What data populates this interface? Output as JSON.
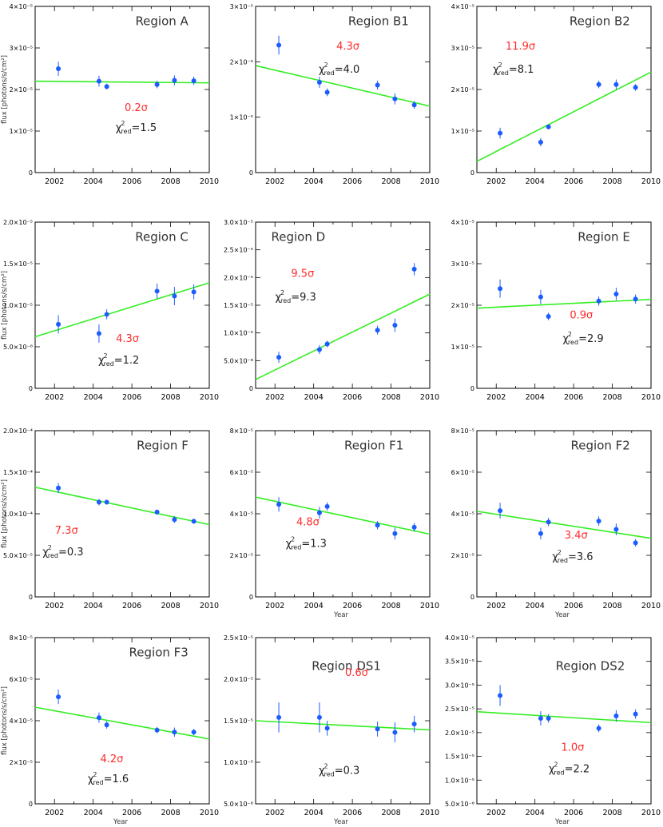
{
  "colors": {
    "points": "#1a5cff",
    "fit": "#33ee22",
    "significance": "#ff2a2a"
  },
  "chart_data": [
    {
      "type": "scatter",
      "title": "Region A",
      "significance": "0.2σ",
      "chi2": "=1.5",
      "xlim": [
        2001,
        2010
      ],
      "ylim": [
        0,
        4e-05
      ],
      "yticks": [
        0,
        1e-05,
        2e-05,
        3e-05,
        4e-05
      ],
      "ytick_labels": [
        "0",
        "1×10⁻⁵",
        "2×10⁻⁵",
        "3×10⁻⁵",
        "4×10⁻⁵"
      ],
      "xtick_labels": [
        "2002",
        "2004",
        "2006",
        "2008",
        "2010"
      ],
      "ylabel": "flux [photons/s/cm²]",
      "xlabel": "",
      "x": [
        2002.2,
        2004.3,
        2004.7,
        2007.3,
        2008.2,
        2009.2
      ],
      "y": [
        2.5e-05,
        2.2e-05,
        2.07e-05,
        2.12e-05,
        2.22e-05,
        2.21e-05
      ],
      "yerr": [
        1.7e-06,
        1.3e-06,
        7e-07,
        9e-07,
        1.2e-06,
        1e-06
      ],
      "fit": [
        [
          2001,
          2.2e-05
        ],
        [
          2010,
          2.16e-05
        ]
      ]
    },
    {
      "type": "scatter",
      "title": "Region B1",
      "significance": "4.3σ",
      "chi2": "=4.0",
      "xlim": [
        2001,
        2010
      ],
      "ylim": [
        0,
        3e-05
      ],
      "yticks": [
        0,
        1e-05,
        2e-05,
        3e-05
      ],
      "ytick_labels": [
        "0",
        "1×10⁻⁵",
        "2×10⁻⁵",
        "3×10⁻⁵"
      ],
      "xtick_labels": [
        "2002",
        "2004",
        "2006",
        "2008",
        "2010"
      ],
      "ylabel": "",
      "xlabel": "",
      "x": [
        2002.2,
        2004.3,
        2004.7,
        2007.3,
        2008.2,
        2009.2
      ],
      "y": [
        2.3e-05,
        1.63e-05,
        1.45e-05,
        1.58e-05,
        1.33e-05,
        1.22e-05
      ],
      "yerr": [
        1.7e-06,
        1e-06,
        7e-07,
        8e-07,
        1e-06,
        7e-07
      ],
      "fit": [
        [
          2001,
          1.93e-05
        ],
        [
          2010,
          1.2e-05
        ]
      ]
    },
    {
      "type": "scatter",
      "title": "Region B2",
      "significance": "11.9σ",
      "chi2": "=8.1",
      "xlim": [
        2001,
        2010
      ],
      "ylim": [
        0,
        4e-05
      ],
      "yticks": [
        0,
        1e-05,
        2e-05,
        3e-05,
        4e-05
      ],
      "ytick_labels": [
        "0",
        "1×10⁻⁵",
        "2×10⁻⁵",
        "3×10⁻⁵",
        "4×10⁻⁵"
      ],
      "xtick_labels": [
        "2002",
        "2004",
        "2006",
        "2008",
        "2010"
      ],
      "ylabel": "",
      "xlabel": "",
      "x": [
        2002.2,
        2004.3,
        2004.7,
        2007.3,
        2008.2,
        2009.2
      ],
      "y": [
        9.5e-06,
        7.3e-06,
        1.1e-05,
        2.12e-05,
        2.12e-05,
        2.05e-05
      ],
      "yerr": [
        1.3e-06,
        1e-06,
        6e-07,
        9e-07,
        1.2e-06,
        8e-07
      ],
      "fit": [
        [
          2001,
          2.7e-06
        ],
        [
          2010,
          2.42e-05
        ]
      ]
    },
    {
      "type": "scatter",
      "title": "Region C",
      "significance": "4.3σ",
      "chi2": "=1.2",
      "xlim": [
        2001,
        2010
      ],
      "ylim": [
        0,
        2e-05
      ],
      "yticks": [
        0,
        5e-06,
        1e-05,
        1.5e-05,
        2e-05
      ],
      "ytick_labels": [
        "0",
        "5.0×10⁻⁶",
        "1.0×10⁻⁵",
        "1.5×10⁻⁵",
        "2.0×10⁻⁵"
      ],
      "xtick_labels": [
        "2002",
        "2004",
        "2006",
        "2008",
        "2010"
      ],
      "ylabel": "flux [photons/s/cm²]",
      "xlabel": "",
      "x": [
        2002.2,
        2004.3,
        2004.7,
        2007.3,
        2008.2,
        2009.2
      ],
      "y": [
        7.7e-06,
        6.6e-06,
        8.9e-06,
        1.17e-05,
        1.11e-05,
        1.16e-05
      ],
      "yerr": [
        1.1e-06,
        1.1e-06,
        6e-07,
        9e-07,
        1.1e-06,
        9e-07
      ],
      "fit": [
        [
          2001,
          6.2e-06
        ],
        [
          2010,
          1.27e-05
        ]
      ]
    },
    {
      "type": "scatter",
      "title": "Region D",
      "significance": "9.5σ",
      "chi2": "=9.3",
      "xlim": [
        2001,
        2010
      ],
      "ylim": [
        0,
        3e-05
      ],
      "yticks": [
        0,
        5e-06,
        1e-05,
        1.5e-05,
        2e-05,
        2.5e-05,
        3e-05
      ],
      "ytick_labels": [
        "0",
        "5.0×10⁻⁶",
        "1.0×10⁻⁵",
        "1.5×10⁻⁵",
        "2.0×10⁻⁵",
        "2.5×10⁻⁵",
        "3.0×10⁻⁵"
      ],
      "xtick_labels": [
        "2002",
        "2004",
        "2006",
        "2008",
        "2010"
      ],
      "ylabel": "",
      "xlabel": "",
      "x": [
        2002.2,
        2004.3,
        2004.7,
        2007.3,
        2008.2,
        2009.2
      ],
      "y": [
        5.6e-06,
        7e-06,
        8e-06,
        1.05e-05,
        1.14e-05,
        2.15e-05
      ],
      "yerr": [
        1e-06,
        8e-07,
        6e-07,
        8e-07,
        1.2e-06,
        1.1e-06
      ],
      "fit": [
        [
          2001,
          1.6e-06
        ],
        [
          2010,
          1.7e-05
        ]
      ]
    },
    {
      "type": "scatter",
      "title": "Region E",
      "significance": "0.9σ",
      "chi2": "=2.9",
      "xlim": [
        2001,
        2010
      ],
      "ylim": [
        0,
        4e-05
      ],
      "yticks": [
        0,
        1e-05,
        2e-05,
        3e-05,
        4e-05
      ],
      "ytick_labels": [
        "0",
        "1×10⁻⁵",
        "2×10⁻⁵",
        "3×10⁻⁵",
        "4×10⁻⁵"
      ],
      "xtick_labels": [
        "2002",
        "2004",
        "2006",
        "2008",
        "2010"
      ],
      "ylabel": "",
      "xlabel": "",
      "x": [
        2002.2,
        2004.3,
        2004.7,
        2007.3,
        2008.2,
        2009.2
      ],
      "y": [
        2.4e-05,
        2.2e-05,
        1.73e-05,
        2.1e-05,
        2.27e-05,
        2.15e-05
      ],
      "yerr": [
        2.2e-06,
        1.7e-06,
        9e-07,
        1.1e-06,
        1.5e-06,
        1.1e-06
      ],
      "fit": [
        [
          2001,
          1.93e-05
        ],
        [
          2010,
          2.14e-05
        ]
      ]
    },
    {
      "type": "scatter",
      "title": "Region F",
      "significance": "7.3σ",
      "chi2": "=0.3",
      "xlim": [
        2001,
        2010
      ],
      "ylim": [
        0,
        0.0002
      ],
      "yticks": [
        0,
        5e-05,
        0.0001,
        0.00015,
        0.0002
      ],
      "ytick_labels": [
        "0",
        "5.0×10⁻⁵",
        "1.0×10⁻⁴",
        "1.5×10⁻⁴",
        "2.0×10⁻⁴"
      ],
      "xtick_labels": [
        "2002",
        "2004",
        "2006",
        "2008",
        "2010"
      ],
      "ylabel": "flux [photons/s/cm²]",
      "xlabel": "",
      "x": [
        2002.2,
        2004.3,
        2004.7,
        2007.3,
        2008.2,
        2009.2
      ],
      "y": [
        0.000131,
        0.000114,
        0.000114,
        0.000102,
        9.3e-05,
        9.1e-05
      ],
      "yerr": [
        6e-06,
        4e-06,
        3e-06,
        3e-06,
        4e-06,
        3e-06
      ],
      "fit": [
        [
          2001,
          0.000132
        ],
        [
          2010,
          8.7e-05
        ]
      ]
    },
    {
      "type": "scatter",
      "title": "Region F1",
      "significance": "4.8σ",
      "chi2": "=1.3",
      "xlim": [
        2001,
        2010
      ],
      "ylim": [
        0,
        8e-05
      ],
      "yticks": [
        0,
        2e-05,
        4e-05,
        6e-05,
        8e-05
      ],
      "ytick_labels": [
        "0",
        "2×10⁻⁵",
        "4×10⁻⁵",
        "6×10⁻⁵",
        "8×10⁻⁵"
      ],
      "xtick_labels": [
        "2002",
        "2004",
        "2006",
        "2008",
        "2010"
      ],
      "ylabel": "",
      "xlabel": "Year",
      "x": [
        2002.2,
        2004.3,
        2004.7,
        2007.3,
        2008.2,
        2009.2
      ],
      "y": [
        4.45e-05,
        4.05e-05,
        4.35e-05,
        3.45e-05,
        3.05e-05,
        3.35e-05
      ],
      "yerr": [
        3.5e-06,
        2.8e-06,
        2e-06,
        2e-06,
        2.8e-06,
        2e-06
      ],
      "fit": [
        [
          2001,
          4.8e-05
        ],
        [
          2010,
          3.02e-05
        ]
      ]
    },
    {
      "type": "scatter",
      "title": "Region F2",
      "significance": "3.4σ",
      "chi2": "=3.6",
      "xlim": [
        2001,
        2010
      ],
      "ylim": [
        0,
        8e-05
      ],
      "yticks": [
        0,
        2e-05,
        4e-05,
        6e-05,
        8e-05
      ],
      "ytick_labels": [
        "0",
        "2×10⁻⁵",
        "4×10⁻⁵",
        "6×10⁻⁵",
        "8×10⁻⁵"
      ],
      "xtick_labels": [
        "2002",
        "2004",
        "2006",
        "2008",
        "2010"
      ],
      "ylabel": "",
      "xlabel": "Year",
      "x": [
        2002.2,
        2004.3,
        2004.7,
        2007.3,
        2008.2,
        2009.2
      ],
      "y": [
        4.15e-05,
        3.05e-05,
        3.6e-05,
        3.65e-05,
        3.25e-05,
        2.6e-05
      ],
      "yerr": [
        3.8e-06,
        2.8e-06,
        2e-06,
        2.2e-06,
        2.8e-06,
        1.8e-06
      ],
      "fit": [
        [
          2001,
          4.12e-05
        ],
        [
          2010,
          2.82e-05
        ]
      ]
    },
    {
      "type": "scatter",
      "title": "Region F3",
      "significance": "4.2σ",
      "chi2": "=1.6",
      "xlim": [
        2001,
        2010
      ],
      "ylim": [
        0,
        8e-05
      ],
      "yticks": [
        0,
        2e-05,
        4e-05,
        6e-05,
        8e-05
      ],
      "ytick_labels": [
        "0",
        "2×10⁻⁵",
        "4×10⁻⁵",
        "6×10⁻⁵",
        "8×10⁻⁵"
      ],
      "xtick_labels": [
        "2002",
        "2004",
        "2006",
        "2008",
        "2010"
      ],
      "ylabel": "flux [photons/s/cm²]",
      "xlabel": "Year",
      "x": [
        2002.2,
        2004.3,
        2004.7,
        2007.3,
        2008.2,
        2009.2
      ],
      "y": [
        5.15e-05,
        4.15e-05,
        3.8e-05,
        3.55e-05,
        3.45e-05,
        3.45e-05
      ],
      "yerr": [
        3.5e-06,
        2.5e-06,
        1.8e-06,
        1.5e-06,
        2.2e-06,
        1.5e-06
      ],
      "fit": [
        [
          2001,
          4.65e-05
        ],
        [
          2010,
          3.12e-05
        ]
      ]
    },
    {
      "type": "scatter",
      "title": "Region DS1",
      "significance": "0.6σ",
      "chi2": "=0.3",
      "xlim": [
        2001,
        2010
      ],
      "ylim": [
        5e-06,
        2.5e-05
      ],
      "yticks": [
        5e-06,
        1e-05,
        1.5e-05,
        2e-05,
        2.5e-05
      ],
      "ytick_labels": [
        "5.0×10⁻⁶",
        "1.0×10⁻⁵",
        "1.5×10⁻⁵",
        "2.0×10⁻⁵",
        "2.5×10⁻⁵"
      ],
      "xtick_labels": [
        "2002",
        "2004",
        "2006",
        "2008",
        "2010"
      ],
      "ylabel": "",
      "xlabel": "Year",
      "x": [
        2002.2,
        2004.3,
        2004.7,
        2007.3,
        2008.2,
        2009.2
      ],
      "y": [
        1.54e-05,
        1.54e-05,
        1.41e-05,
        1.4e-05,
        1.36e-05,
        1.46e-05
      ],
      "yerr": [
        1.8e-06,
        1.8e-06,
        9e-07,
        9e-07,
        1.2e-06,
        1e-06
      ],
      "fit": [
        [
          2001,
          1.5e-05
        ],
        [
          2010,
          1.39e-05
        ]
      ]
    },
    {
      "type": "scatter",
      "title": "Region DS2",
      "significance": "1.0σ",
      "chi2": "=2.2",
      "xlim": [
        2001,
        2010
      ],
      "ylim": [
        5e-06,
        4e-05
      ],
      "yticks": [
        5e-06,
        1e-05,
        1.5e-05,
        2e-05,
        2.5e-05,
        3e-05,
        3.5e-05,
        4e-05
      ],
      "ytick_labels": [
        "5.0×10⁻⁶",
        "1.0×10⁻⁵",
        "1.5×10⁻⁵",
        "2.0×10⁻⁵",
        "2.5×10⁻⁵",
        "3.0×10⁻⁵",
        "3.5×10⁻⁵",
        "4.0×10⁻⁵"
      ],
      "xtick_labels": [
        "2002",
        "2004",
        "2006",
        "2008",
        "2010"
      ],
      "ylabel": "",
      "xlabel": "Year",
      "x": [
        2002.2,
        2004.3,
        2004.7,
        2007.3,
        2008.2,
        2009.2
      ],
      "y": [
        2.78e-05,
        2.3e-05,
        2.3e-05,
        2.09e-05,
        2.35e-05,
        2.39e-05
      ],
      "yerr": [
        2.2e-06,
        1.5e-06,
        9e-07,
        8e-07,
        1.2e-06,
        1e-06
      ],
      "fit": [
        [
          2001,
          2.44e-05
        ],
        [
          2010,
          2.21e-05
        ]
      ]
    }
  ]
}
